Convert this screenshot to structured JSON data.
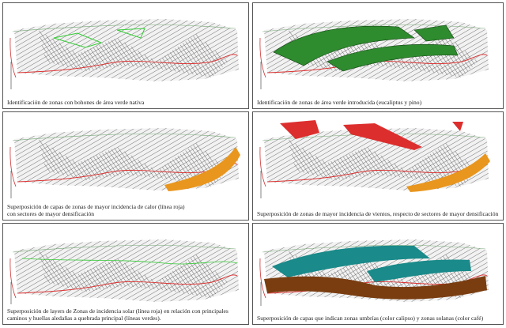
{
  "panels": [
    {
      "caption": [
        "Identificación de zonas con bohones de área verde nativa"
      ]
    },
    {
      "caption": [
        "Identificación de zonas de área verde introducida (eucaliptus y pino)"
      ]
    },
    {
      "caption": [
        "Superposición de capas de zonas de mayor incidencia de calor (línea roja)",
        "con sectores de mayor densificación"
      ]
    },
    {
      "caption": [
        "Superposición de zonas de mayor incidencia de vientos, respecto de sectores de mayor densificación"
      ]
    },
    {
      "caption": [
        "Superposición de layers de Zonas de incidencia solar (línea roja) en relación con principales",
        "caminos y huellas aledañas a quebrada principal (líneas verdes)."
      ]
    },
    {
      "caption": [
        "Superposición de capas que indican zonas umbrías (color calipso) y zonas solanas (color café)"
      ]
    }
  ]
}
